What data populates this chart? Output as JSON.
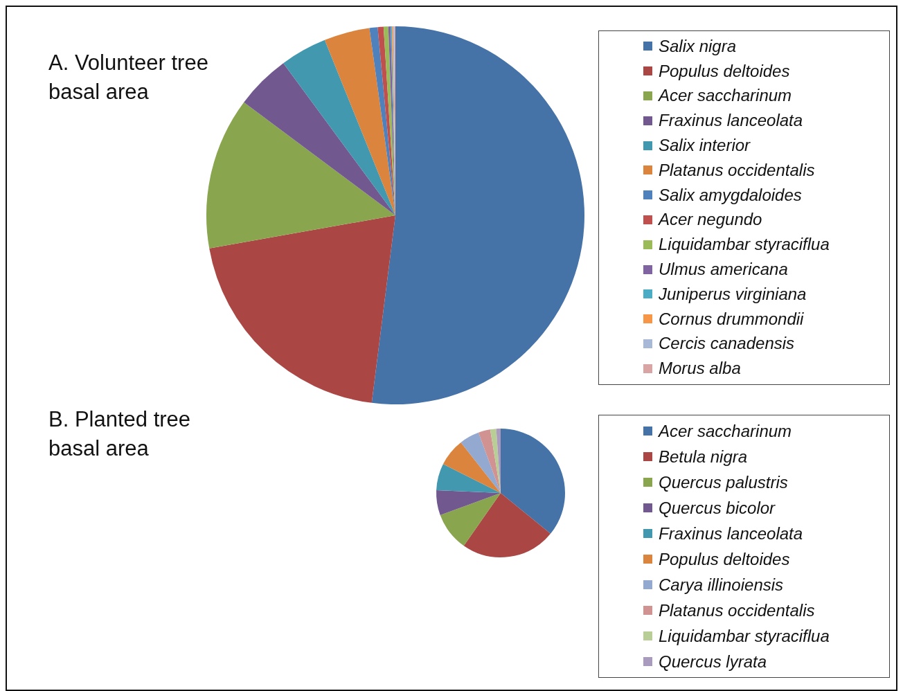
{
  "chart_data": [
    {
      "type": "pie",
      "title": "A. Volunteer tree basal area",
      "legend": "right",
      "categories": [
        "Salix nigra",
        "Populus deltoides",
        "Acer saccharinum",
        "Fraxinus lanceolata",
        "Salix interior",
        "Platanus occidentalis",
        "Salix amygdaloides",
        "Acer negundo",
        "Liquidambar styraciflua",
        "Ulmus americana",
        "Juniperus virginiana",
        "Cornus drummondii",
        "Cercis canadensis",
        "Morus alba"
      ],
      "values": [
        52,
        20.2,
        13,
        4.7,
        4,
        3.9,
        0.7,
        0.5,
        0.4,
        0.2,
        0.1,
        0.1,
        0.1,
        0.1
      ],
      "colors": [
        "#4572a7",
        "#aa4643",
        "#89a54e",
        "#71588f",
        "#4198af",
        "#db843d",
        "#4f81bd",
        "#c0504d",
        "#9bbb59",
        "#8064a2",
        "#4bacc6",
        "#f79646",
        "#a7b9d6",
        "#d9a5a4"
      ]
    },
    {
      "type": "pie",
      "title": "B. Planted tree basal area",
      "legend": "right",
      "categories": [
        "Acer saccharinum",
        "Betula nigra",
        "Quercus palustris",
        "Quercus bicolor",
        "Fraxinus lanceolata",
        "Populus deltoides",
        "Carya illinoiensis",
        "Platanus occidentalis",
        "Liquidambar styraciflua",
        "Quercus lyrata"
      ],
      "values": [
        35.9,
        23.8,
        9.7,
        6.3,
        6.7,
        7,
        5,
        3,
        1.5,
        1.1
      ],
      "colors": [
        "#4572a7",
        "#aa4643",
        "#89a54e",
        "#71588f",
        "#4198af",
        "#db843d",
        "#93a9cf",
        "#d19392",
        "#b9cd96",
        "#a99bbd"
      ]
    }
  ]
}
